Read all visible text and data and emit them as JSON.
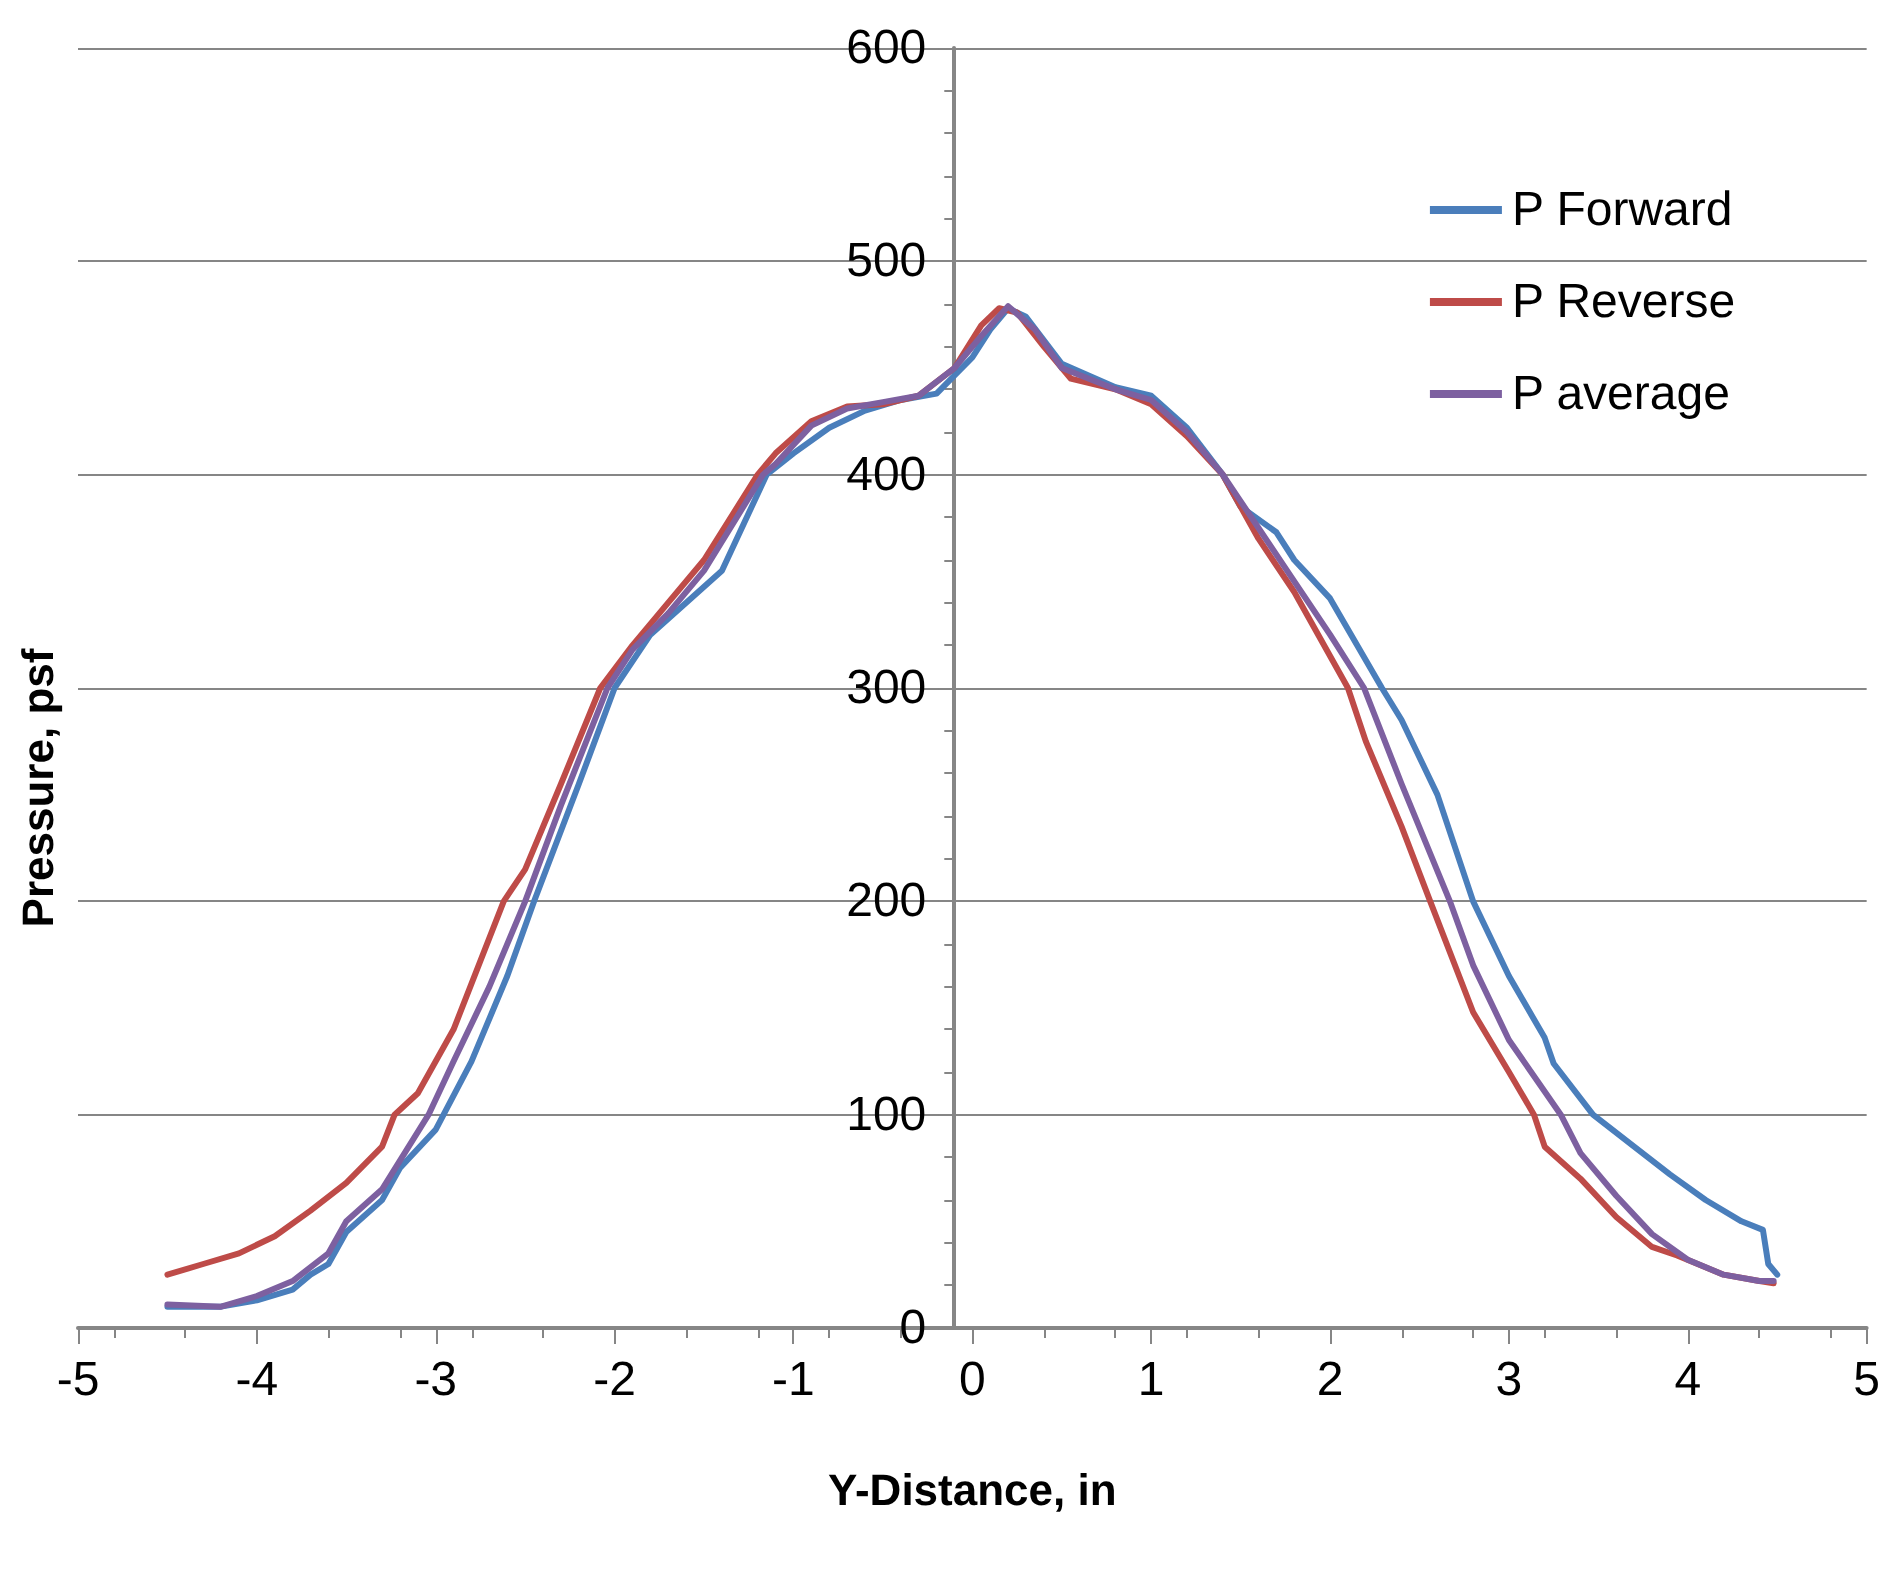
{
  "chart_data": {
    "type": "line",
    "xlabel": "Y-Distance, in",
    "ylabel": "Pressure, psf",
    "xlim": [
      -5,
      5
    ],
    "xticks": [
      -5,
      -4,
      -3,
      -2,
      -1,
      0,
      1,
      2,
      3,
      4,
      5
    ],
    "ylim": [
      0,
      600
    ],
    "yticks": [
      0,
      100,
      200,
      300,
      400,
      500,
      600
    ],
    "grid": "y",
    "legend": "top right",
    "marker": "none",
    "line_style": "solid",
    "series": [
      {
        "name": "P Forward",
        "color": "#4a7ebb",
        "x": [
          -4.5,
          -4.2,
          -4.0,
          -3.8,
          -3.7,
          -3.6,
          -3.5,
          -3.3,
          -3.2,
          -3.0,
          -2.8,
          -2.6,
          -2.45,
          -2.2,
          -2.0,
          -1.8,
          -1.6,
          -1.4,
          -1.15,
          -1.0,
          -0.8,
          -0.6,
          -0.4,
          -0.2,
          0,
          0.1,
          0.2,
          0.3,
          0.5,
          0.8,
          1.0,
          1.2,
          1.4,
          1.5,
          1.7,
          1.8,
          2.0,
          2.29,
          2.4,
          2.6,
          2.8,
          3.0,
          3.2,
          3.25,
          3.47,
          3.7,
          3.9,
          4.1,
          4.3,
          4.42,
          4.45,
          4.5
        ],
        "values": [
          10,
          10,
          13,
          18,
          25,
          30,
          45,
          60,
          75,
          93,
          125,
          165,
          200,
          255,
          300,
          325,
          340,
          355,
          400,
          410,
          422,
          430,
          435,
          438,
          455,
          468,
          478,
          474,
          452,
          441,
          437,
          422,
          400,
          385,
          373,
          360,
          342,
          300,
          285,
          250,
          200,
          165,
          136,
          124,
          100,
          85,
          72,
          60,
          50,
          46,
          30,
          25
        ]
      },
      {
        "name": "P Reverse",
        "color": "#be4b48",
        "x": [
          -4.5,
          -4.3,
          -4.1,
          -3.9,
          -3.7,
          -3.5,
          -3.3,
          -3.23,
          -3.1,
          -2.9,
          -2.62,
          -2.5,
          -2.3,
          -2.08,
          -1.9,
          -1.7,
          -1.5,
          -1.2,
          -1.1,
          -0.9,
          -0.7,
          -0.5,
          -0.3,
          -0.1,
          0.05,
          0.15,
          0.25,
          0.4,
          0.55,
          0.8,
          1.0,
          1.2,
          1.4,
          1.6,
          1.8,
          2.1,
          2.2,
          2.4,
          2.56,
          2.8,
          3.0,
          3.14,
          3.2,
          3.4,
          3.6,
          3.8,
          3.94,
          4.2,
          4.4,
          4.48
        ],
        "values": [
          25,
          30,
          35,
          43,
          55,
          68,
          85,
          100,
          110,
          140,
          200,
          215,
          255,
          300,
          320,
          340,
          360,
          400,
          410,
          425,
          432,
          433,
          437,
          450,
          470,
          478,
          476,
          460,
          445,
          440,
          433,
          418,
          400,
          370,
          345,
          300,
          275,
          235,
          200,
          148,
          120,
          100,
          85,
          70,
          52,
          38,
          34,
          25,
          22,
          21
        ]
      },
      {
        "name": "P average",
        "color": "#7d60a0",
        "x": [
          -4.5,
          -4.2,
          -4.0,
          -3.8,
          -3.6,
          -3.5,
          -3.3,
          -3.04,
          -2.9,
          -2.7,
          -2.5,
          -2.3,
          -2.04,
          -1.9,
          -1.7,
          -1.5,
          -1.17,
          -1.1,
          -0.9,
          -0.7,
          -0.5,
          -0.3,
          -0.1,
          0.05,
          0.2,
          0.35,
          0.5,
          0.8,
          1.0,
          1.2,
          1.4,
          1.6,
          1.8,
          2.0,
          2.19,
          2.4,
          2.67,
          2.8,
          3.0,
          3.29,
          3.4,
          3.6,
          3.8,
          4.0,
          4.2,
          4.4,
          4.48
        ],
        "values": [
          11,
          10,
          15,
          22,
          35,
          50,
          65,
          100,
          125,
          160,
          200,
          245,
          300,
          318,
          335,
          355,
          400,
          405,
          423,
          431,
          434,
          437,
          450,
          465,
          479,
          468,
          450,
          440,
          435,
          420,
          400,
          375,
          350,
          325,
          300,
          255,
          200,
          170,
          135,
          100,
          82,
          62,
          44,
          32,
          25,
          22,
          22
        ]
      }
    ]
  }
}
